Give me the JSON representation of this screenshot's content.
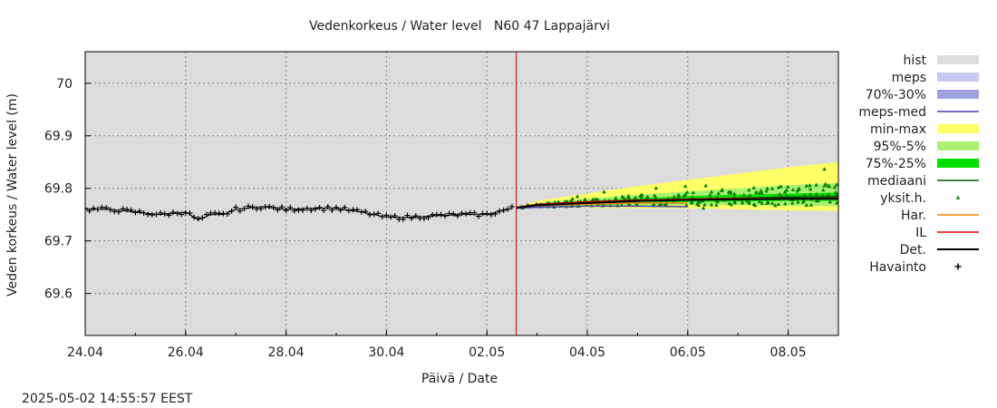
{
  "chart_data": {
    "type": "line",
    "title": "Vedenkorkeus / Water level   N60 47 Lappajärvi",
    "xlabel": "Päivä / Date",
    "ylabel": "Veden korkeus / Water level (m)",
    "timestamp": "2025-05-02 14:55:57 EEST",
    "x_range": [
      "2025-04-24",
      "2025-05-09"
    ],
    "ylim": [
      69.52,
      70.06
    ],
    "grid": true,
    "legend_position": "right",
    "forecast_start": "2025-05-02 14:00",
    "x_ticks": [
      {
        "date": "2025-04-24",
        "label": "24.04"
      },
      {
        "date": "2025-04-26",
        "label": "26.04"
      },
      {
        "date": "2025-04-28",
        "label": "28.04"
      },
      {
        "date": "2025-04-30",
        "label": "30.04"
      },
      {
        "date": "2025-05-02",
        "label": "02.05"
      },
      {
        "date": "2025-05-04",
        "label": "04.05"
      },
      {
        "date": "2025-05-06",
        "label": "06.05"
      },
      {
        "date": "2025-05-08",
        "label": "08.05"
      }
    ],
    "y_ticks": [
      {
        "value": 69.6,
        "label": "69.6"
      },
      {
        "value": 69.7,
        "label": "69.7"
      },
      {
        "value": 69.8,
        "label": "69.8"
      },
      {
        "value": 69.9,
        "label": "69.9"
      },
      {
        "value": 70.0,
        "label": "70"
      }
    ],
    "legend": [
      {
        "label": "hist",
        "kind": "band",
        "color": "#dcdcdc"
      },
      {
        "label": "meps",
        "kind": "band",
        "color": "#c8c8f4"
      },
      {
        "label": "70%-30%",
        "kind": "band",
        "color": "#a0a0de"
      },
      {
        "label": "meps-med",
        "kind": "line",
        "color": "#4a3fb8"
      },
      {
        "label": "min-max",
        "kind": "band",
        "color": "#ffff66"
      },
      {
        "label": "95%-5%",
        "kind": "band",
        "color": "#a8f070"
      },
      {
        "label": "75%-25%",
        "kind": "band",
        "color": "#00e000"
      },
      {
        "label": "mediaani",
        "kind": "line",
        "color": "#006400"
      },
      {
        "label": "yksit.h.",
        "kind": "point",
        "color": "#008000"
      },
      {
        "label": "Har.",
        "kind": "line",
        "color": "#f08000"
      },
      {
        "label": "IL",
        "kind": "line",
        "color": "#e00000"
      },
      {
        "label": "Det.",
        "kind": "line",
        "color": "#000000"
      },
      {
        "label": "Havainto",
        "kind": "cross",
        "color": "#000000"
      }
    ],
    "series": [
      {
        "name": "Havainto",
        "x": [
          "2025-04-24",
          "2025-04-24T12:00",
          "2025-04-25",
          "2025-04-25T12:00",
          "2025-04-26",
          "2025-04-26T06:00",
          "2025-04-26T12:00",
          "2025-04-26T18:00",
          "2025-04-27",
          "2025-04-27T12:00",
          "2025-04-28",
          "2025-04-28T12:00",
          "2025-04-29",
          "2025-04-29T12:00",
          "2025-04-30",
          "2025-04-30T12:00",
          "2025-05-01",
          "2025-05-01T12:00",
          "2025-05-02",
          "2025-05-02T12:00"
        ],
        "y": [
          69.76,
          69.76,
          69.755,
          69.75,
          69.755,
          69.74,
          69.75,
          69.75,
          69.76,
          69.765,
          69.76,
          69.762,
          69.762,
          69.755,
          69.745,
          69.745,
          69.748,
          69.75,
          69.75,
          69.762
        ]
      },
      {
        "name": "Det.",
        "x": [
          "2025-05-02T14:00",
          "2025-05-03",
          "2025-05-04",
          "2025-05-05",
          "2025-05-06",
          "2025-05-07",
          "2025-05-08",
          "2025-05-09"
        ],
        "y": [
          69.763,
          69.768,
          69.772,
          69.776,
          69.778,
          69.779,
          69.78,
          69.78
        ]
      },
      {
        "name": "mediaani",
        "x": [
          "2025-05-02T14:00",
          "2025-05-03",
          "2025-05-04",
          "2025-05-05",
          "2025-05-06",
          "2025-05-07",
          "2025-05-08",
          "2025-05-09"
        ],
        "y": [
          69.763,
          69.768,
          69.773,
          69.776,
          69.779,
          69.781,
          69.783,
          69.784
        ]
      },
      {
        "name": "meps-med",
        "x": [
          "2025-05-02T14:00",
          "2025-05-03",
          "2025-05-04",
          "2025-05-05",
          "2025-05-06"
        ],
        "y": [
          69.762,
          69.764,
          69.766,
          69.766,
          69.765
        ]
      },
      {
        "name": "IL",
        "x": [
          "2025-05-02T14:00",
          "2025-05-03",
          "2025-05-04",
          "2025-05-05",
          "2025-05-06",
          "2025-05-07",
          "2025-05-08",
          "2025-05-09"
        ],
        "y": [
          69.763,
          69.769,
          69.774,
          69.777,
          69.779,
          69.78,
          69.78,
          69.781
        ]
      },
      {
        "name": "Har.",
        "x": [
          "2025-05-02T14:00",
          "2025-05-03",
          "2025-05-04",
          "2025-05-05",
          "2025-05-06"
        ],
        "y": [
          69.763,
          69.767,
          69.77,
          69.772,
          69.772
        ]
      },
      {
        "name": "min-max",
        "x": [
          "2025-05-02T14:00",
          "2025-05-03",
          "2025-05-04",
          "2025-05-05",
          "2025-05-06",
          "2025-05-07",
          "2025-05-08",
          "2025-05-09"
        ],
        "low": [
          69.762,
          69.763,
          69.763,
          69.762,
          69.762,
          69.76,
          69.758,
          69.757
        ],
        "high": [
          69.764,
          69.776,
          69.79,
          69.804,
          69.816,
          69.828,
          69.84,
          69.85
        ]
      },
      {
        "name": "95%-5%",
        "x": [
          "2025-05-02T14:00",
          "2025-05-03",
          "2025-05-04",
          "2025-05-05",
          "2025-05-06",
          "2025-05-07",
          "2025-05-08",
          "2025-05-09"
        ],
        "low": [
          69.762,
          69.764,
          69.766,
          69.767,
          69.768,
          69.768,
          69.767,
          69.766
        ],
        "high": [
          69.764,
          69.772,
          69.78,
          69.788,
          69.794,
          69.8,
          69.806,
          69.81
        ]
      },
      {
        "name": "75%-25%",
        "x": [
          "2025-05-02T14:00",
          "2025-05-03",
          "2025-05-04",
          "2025-05-05",
          "2025-05-06",
          "2025-05-07",
          "2025-05-08",
          "2025-05-09"
        ],
        "low": [
          69.762,
          69.765,
          69.769,
          69.772,
          69.774,
          69.775,
          69.776,
          69.776
        ],
        "high": [
          69.764,
          69.77,
          69.776,
          69.781,
          69.785,
          69.788,
          69.79,
          69.792
        ]
      }
    ]
  }
}
